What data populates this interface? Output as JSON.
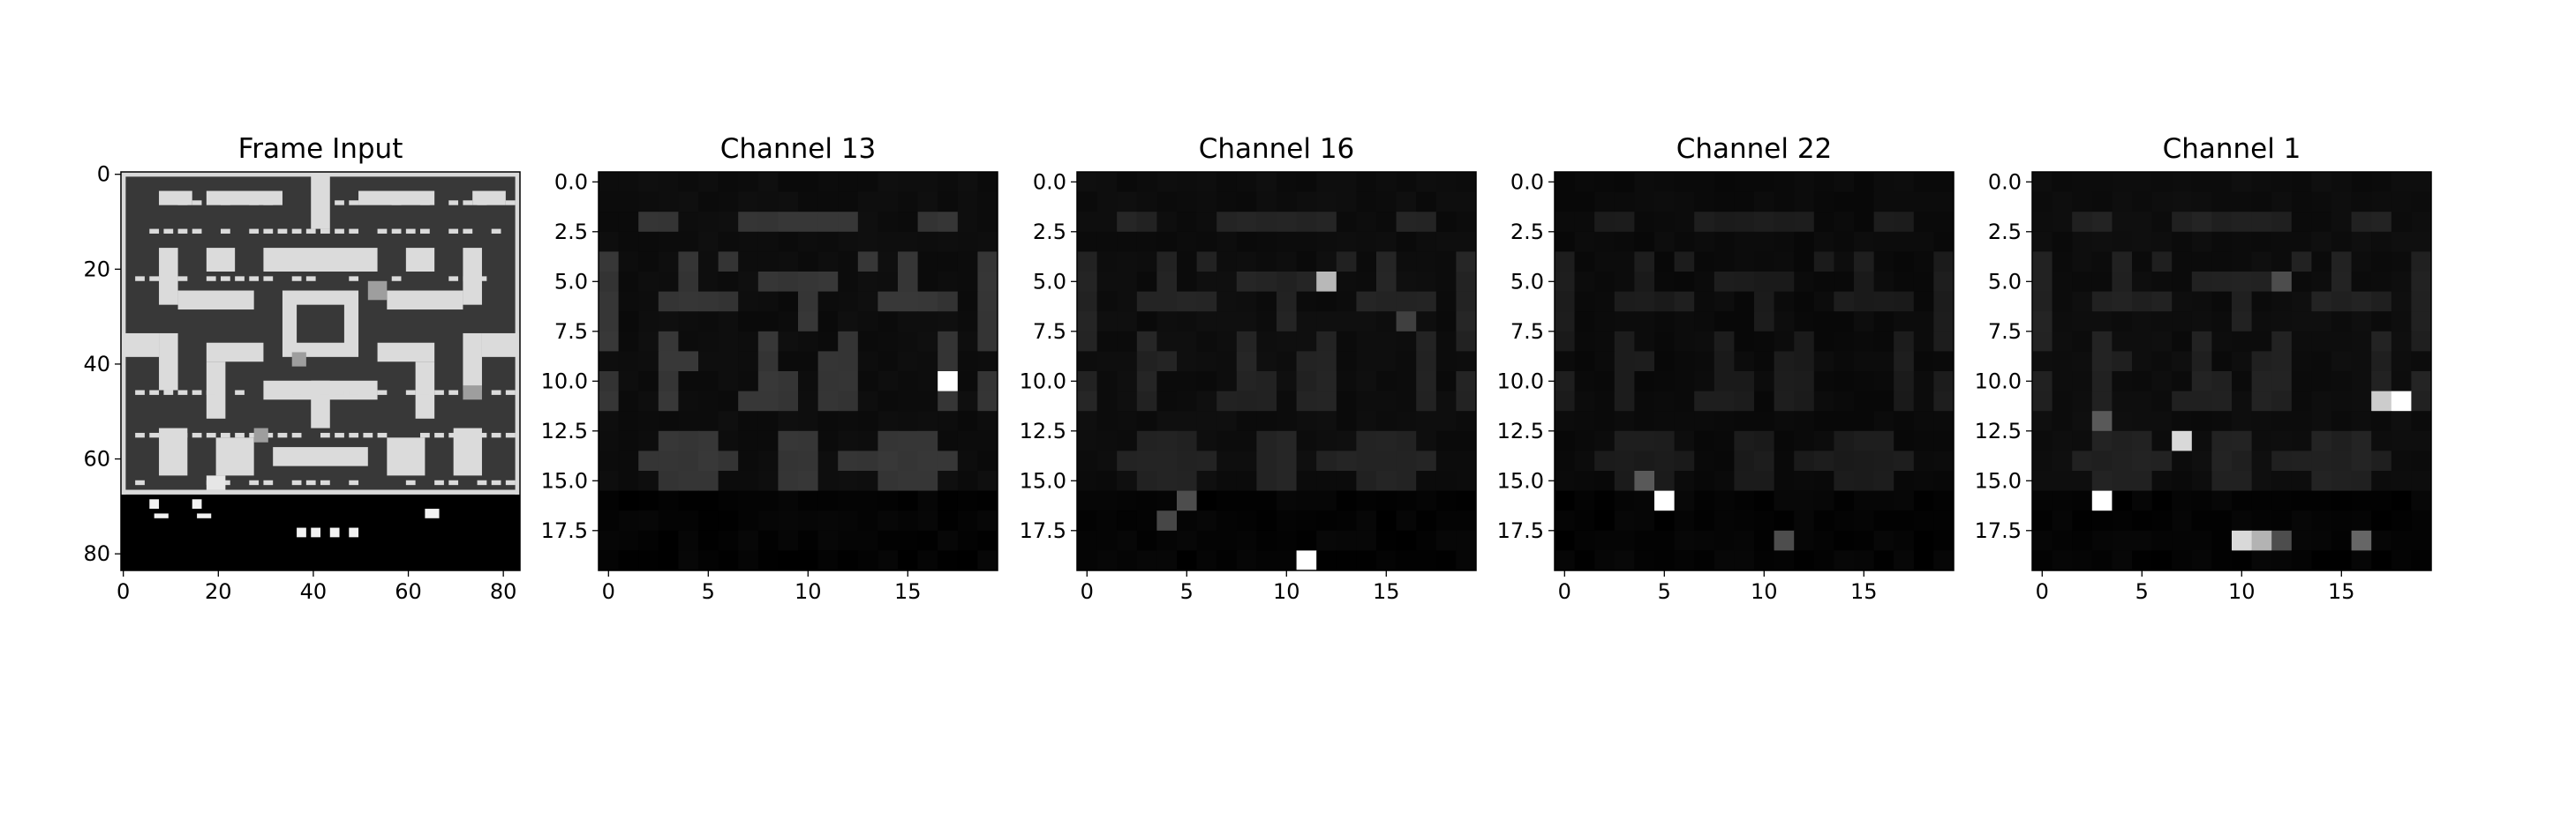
{
  "chart_data": [
    {
      "type": "heatmap",
      "title": "Frame Input",
      "colormap": "gray",
      "grid": false,
      "rows": 84,
      "cols": 84,
      "xlim": [
        0,
        84
      ],
      "ylim": [
        84,
        0
      ],
      "xticks": [
        0,
        20,
        40,
        60,
        80
      ],
      "yticks": [
        0,
        20,
        40,
        60,
        80
      ],
      "xtick_labels": [
        "0",
        "20",
        "40",
        "60",
        "80"
      ],
      "ytick_labels": [
        "0",
        "20",
        "40",
        "60",
        "80"
      ],
      "background_value": 0.22,
      "border_value": 0.85,
      "hud_value": 0.0,
      "wall_value": 0.86,
      "walls": [
        [
          8,
          4,
          7,
          3
        ],
        [
          18,
          4,
          16,
          3
        ],
        [
          50,
          4,
          16,
          3
        ],
        [
          74,
          4,
          7,
          3
        ],
        [
          40,
          0,
          4,
          12
        ],
        [
          8,
          16,
          4,
          12
        ],
        [
          72,
          16,
          4,
          12
        ],
        [
          18,
          16,
          6,
          5
        ],
        [
          60,
          16,
          6,
          5
        ],
        [
          30,
          16,
          24,
          5
        ],
        [
          12,
          25,
          16,
          4
        ],
        [
          56,
          25,
          16,
          4
        ],
        [
          34,
          25,
          16,
          14
        ],
        [
          0,
          34,
          8,
          5
        ],
        [
          76,
          34,
          8,
          5
        ],
        [
          8,
          34,
          4,
          12
        ],
        [
          72,
          34,
          4,
          12
        ],
        [
          18,
          36,
          12,
          4
        ],
        [
          54,
          36,
          12,
          4
        ],
        [
          18,
          40,
          4,
          12
        ],
        [
          62,
          40,
          4,
          12
        ],
        [
          30,
          44,
          24,
          4
        ],
        [
          40,
          44,
          4,
          10
        ],
        [
          8,
          54,
          6,
          10
        ],
        [
          70,
          54,
          6,
          10
        ],
        [
          20,
          56,
          8,
          8
        ],
        [
          56,
          56,
          8,
          8
        ],
        [
          32,
          58,
          20,
          4
        ]
      ],
      "inner_box": [
        36,
        27,
        12,
        10
      ],
      "pellet_rows": [
        6,
        12,
        22,
        46,
        55,
        65
      ],
      "sprites": [
        [
          52,
          23,
          4,
          4,
          0.62
        ],
        [
          36,
          38,
          3,
          3,
          0.62
        ],
        [
          72,
          45,
          4,
          3,
          0.62
        ],
        [
          28,
          54,
          3,
          3,
          0.62
        ],
        [
          18,
          64,
          4,
          3,
          0.9
        ]
      ],
      "hud_marks": [
        [
          6,
          69,
          2,
          2
        ],
        [
          7,
          72,
          3,
          1
        ],
        [
          15,
          69,
          2,
          2
        ],
        [
          16,
          72,
          3,
          1
        ],
        [
          37,
          75,
          2,
          2
        ],
        [
          40,
          75,
          2,
          2
        ],
        [
          44,
          75,
          2,
          2
        ],
        [
          48,
          75,
          2,
          2
        ],
        [
          64,
          71,
          3,
          2
        ]
      ]
    },
    {
      "type": "heatmap",
      "title": "Channel 13",
      "colormap": "gray",
      "grid": false,
      "rows": 20,
      "cols": 20,
      "xticks": [
        0,
        5,
        10,
        15
      ],
      "yticks": [
        0.0,
        2.5,
        5.0,
        7.5,
        10.0,
        12.5,
        15.0,
        17.5
      ],
      "xtick_labels": [
        "0",
        "5",
        "10",
        "15"
      ],
      "ytick_labels": [
        "0.0",
        "2.5",
        "5.0",
        "7.5",
        "10.0",
        "12.5",
        "15.0",
        "17.5"
      ],
      "background_value": 0.04,
      "maze_value": 0.2,
      "bottom_value": 0.0,
      "hotspots": [
        [
          10,
          17,
          1.0
        ]
      ]
    },
    {
      "type": "heatmap",
      "title": "Channel 16",
      "colormap": "gray",
      "grid": false,
      "rows": 20,
      "cols": 20,
      "xticks": [
        0,
        5,
        10,
        15
      ],
      "yticks": [
        0.0,
        2.5,
        5.0,
        7.5,
        10.0,
        12.5,
        15.0,
        17.5
      ],
      "xtick_labels": [
        "0",
        "5",
        "10",
        "15"
      ],
      "ytick_labels": [
        "0.0",
        "2.5",
        "5.0",
        "7.5",
        "10.0",
        "12.5",
        "15.0",
        "17.5"
      ],
      "background_value": 0.04,
      "maze_value": 0.13,
      "bottom_value": 0.0,
      "hotspots": [
        [
          5,
          12,
          0.72
        ],
        [
          19,
          11,
          1.0
        ],
        [
          16,
          5,
          0.3
        ],
        [
          17,
          4,
          0.28
        ],
        [
          7,
          16,
          0.25
        ]
      ]
    },
    {
      "type": "heatmap",
      "title": "Channel 22",
      "colormap": "gray",
      "grid": false,
      "rows": 20,
      "cols": 20,
      "xticks": [
        0,
        5,
        10,
        15
      ],
      "yticks": [
        0.0,
        2.5,
        5.0,
        7.5,
        10.0,
        12.5,
        15.0,
        17.5
      ],
      "xtick_labels": [
        "0",
        "5",
        "10",
        "15"
      ],
      "ytick_labels": [
        "0.0",
        "2.5",
        "5.0",
        "7.5",
        "10.0",
        "12.5",
        "15.0",
        "17.5"
      ],
      "background_value": 0.03,
      "maze_value": 0.1,
      "bottom_value": 0.0,
      "hotspots": [
        [
          16,
          5,
          1.0
        ],
        [
          15,
          4,
          0.35
        ],
        [
          18,
          11,
          0.3
        ]
      ]
    },
    {
      "type": "heatmap",
      "title": "Channel 1",
      "colormap": "gray",
      "grid": false,
      "rows": 20,
      "cols": 20,
      "xticks": [
        0,
        5,
        10,
        15
      ],
      "yticks": [
        0.0,
        2.5,
        5.0,
        7.5,
        10.0,
        12.5,
        15.0,
        17.5
      ],
      "xtick_labels": [
        "0",
        "5",
        "10",
        "15"
      ],
      "ytick_labels": [
        "0.0",
        "2.5",
        "5.0",
        "7.5",
        "10.0",
        "12.5",
        "15.0",
        "17.5"
      ],
      "background_value": 0.04,
      "maze_value": 0.12,
      "bottom_value": 0.0,
      "hotspots": [
        [
          11,
          18,
          1.0
        ],
        [
          11,
          17,
          0.8
        ],
        [
          13,
          7,
          0.85
        ],
        [
          16,
          3,
          1.0
        ],
        [
          18,
          10,
          0.85
        ],
        [
          18,
          11,
          0.7
        ],
        [
          12,
          3,
          0.35
        ],
        [
          5,
          12,
          0.3
        ],
        [
          18,
          16,
          0.4
        ],
        [
          18,
          12,
          0.3
        ]
      ]
    }
  ]
}
